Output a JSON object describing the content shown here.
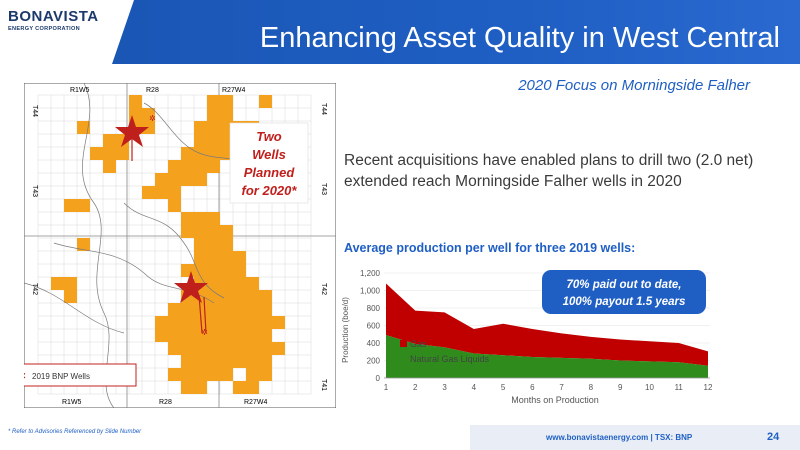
{
  "logo": {
    "name": "BONAVISTA",
    "sub": "ENERGY CORPORATION"
  },
  "header": {
    "title": "Enhancing Asset Quality in West Central",
    "subtitle": "2020 Focus on Morningside Falher"
  },
  "map": {
    "top_labels": [
      "R1W5",
      "R28",
      "R27W4"
    ],
    "bottom_labels": [
      "R1W5",
      "R28",
      "R27W4"
    ],
    "left_labels": [
      "T44",
      "T43",
      "T42"
    ],
    "right_labels": [
      "T44",
      "T43",
      "T42",
      "T41"
    ],
    "callout": [
      "Two",
      "Wells",
      "Planned",
      "for 2020*"
    ],
    "legend": "2019 BNP Wells",
    "colors": {
      "land": "#f4a21e",
      "star": "#c0201c"
    }
  },
  "body_text": "Recent acquisitions have enabled plans to drill two (2.0 net) extended reach Morningside Falher wells in 2020",
  "chart_heading": "Average production per well for three 2019 wells:",
  "chart_data": {
    "type": "area",
    "x": [
      1,
      2,
      3,
      4,
      5,
      6,
      7,
      8,
      9,
      10,
      11,
      12
    ],
    "series": [
      {
        "name": "Gas",
        "values": [
          590,
          380,
          400,
          280,
          360,
          320,
          280,
          250,
          240,
          230,
          220,
          165
        ],
        "color": "#c00000"
      },
      {
        "name": "Natural Gas Liquids",
        "values": [
          490,
          390,
          350,
          280,
          260,
          240,
          230,
          220,
          200,
          190,
          180,
          140
        ],
        "color": "#2e8b1c"
      }
    ],
    "stacked": true,
    "ylabel": "Production (boe/d)",
    "xlabel": "Months on Production",
    "ylim": [
      0,
      1200
    ],
    "yticks": [
      "0",
      "200",
      "400",
      "600",
      "800",
      "1,000",
      "1,200"
    ],
    "xticks": [
      "1",
      "2",
      "3",
      "4",
      "5",
      "6",
      "7",
      "8",
      "9",
      "10",
      "11",
      "12"
    ],
    "legend_position": "inside-bottom-left",
    "callout": [
      "70% paid out to date,",
      "100% payout 1.5 years"
    ],
    "callout_color": "#1f5fc4"
  },
  "footer": {
    "note": "* Refer to Advisories Referenced by Slide Number",
    "website": "www.bonavistaenergy.com | TSX: BNP",
    "page": "24"
  }
}
